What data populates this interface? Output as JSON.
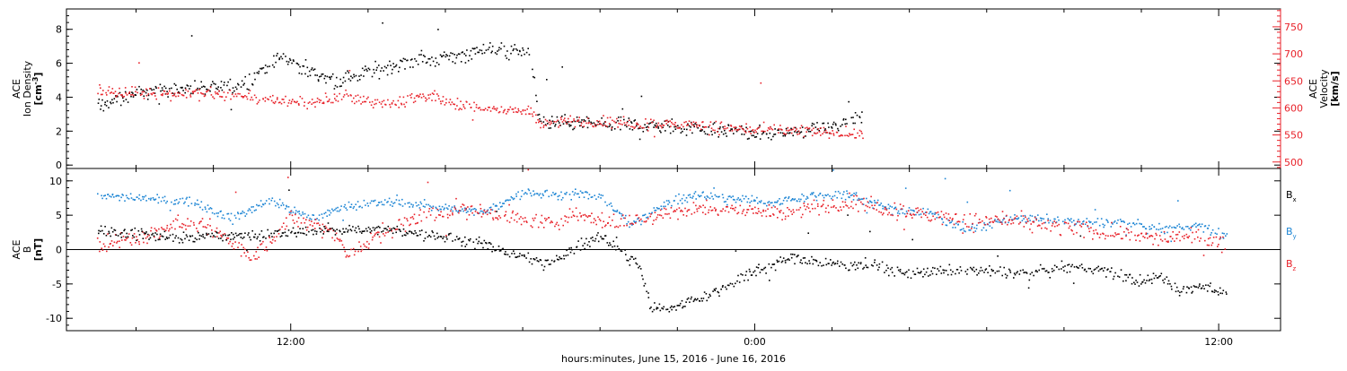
{
  "chart_data": [
    {
      "type": "scatter",
      "panel": "top",
      "left_axis": {
        "label_lines": [
          "ACE",
          "Ion Density"
        ],
        "unit_base": "[cm",
        "unit_sup": "-3",
        "unit_close": "]",
        "ylim": [
          -0.2,
          9.2
        ],
        "ticks": [
          0,
          2,
          4,
          6,
          8
        ],
        "color": "#000000"
      },
      "right_axis": {
        "label_lines": [
          "ACE",
          "Velocity",
          "[km/s]"
        ],
        "ylim": [
          488,
          783
        ],
        "ticks": [
          500,
          550,
          600,
          650,
          700,
          750
        ],
        "color": "#e8222a"
      },
      "series": [
        {
          "color": "#000000",
          "axis": "left",
          "anchors": [
            [
              7.0,
              3.5
            ],
            [
              8.0,
              4.3
            ],
            [
              9.5,
              4.6
            ],
            [
              10.5,
              4.6
            ],
            [
              11.2,
              5.5
            ],
            [
              11.8,
              6.5
            ],
            [
              12.5,
              5.5
            ],
            [
              13.2,
              5.0
            ],
            [
              14.0,
              5.5
            ],
            [
              15.0,
              6.2
            ],
            [
              16.0,
              6.3
            ],
            [
              17.0,
              6.9
            ],
            [
              18.2,
              6.7
            ],
            [
              18.4,
              2.6
            ],
            [
              20.0,
              2.4
            ],
            [
              22.0,
              2.3
            ],
            [
              24.0,
              1.9
            ],
            [
              25.0,
              2.0
            ],
            [
              26.0,
              2.4
            ],
            [
              26.8,
              2.8
            ]
          ],
          "spread": 0.65
        },
        {
          "color": "#e8222a",
          "axis": "right",
          "anchors": [
            [
              7.0,
              635
            ],
            [
              8.0,
              628
            ],
            [
              10.0,
              628
            ],
            [
              11.5,
              615
            ],
            [
              12.5,
              612
            ],
            [
              13.5,
              622
            ],
            [
              14.5,
              608
            ],
            [
              15.5,
              625
            ],
            [
              16.2,
              608
            ],
            [
              17.0,
              600
            ],
            [
              18.2,
              595
            ],
            [
              18.4,
              575
            ],
            [
              20.0,
              575
            ],
            [
              22.0,
              570
            ],
            [
              24.0,
              560
            ],
            [
              25.0,
              558
            ],
            [
              26.0,
              557
            ],
            [
              26.8,
              552
            ]
          ],
          "spread": 16
        }
      ]
    },
    {
      "type": "scatter",
      "panel": "bottom",
      "left_axis": {
        "label_lines": [
          "ACE",
          "B",
          "[nT]"
        ],
        "ylim": [
          -11.8,
          11.8
        ],
        "ticks": [
          -10,
          -5,
          0,
          5,
          10
        ],
        "color": "#000000"
      },
      "legend": [
        {
          "label": "B",
          "sub": "x",
          "color": "#000000"
        },
        {
          "label": "B",
          "sub": "y",
          "color": "#1e86d4"
        },
        {
          "label": "B",
          "sub": "z",
          "color": "#e8222a"
        }
      ],
      "series": [
        {
          "name": "Bx",
          "color": "#000000",
          "anchors": [
            [
              7.0,
              3.0
            ],
            [
              8.5,
              2.0
            ],
            [
              10.5,
              2.0
            ],
            [
              12.0,
              2.5
            ],
            [
              13.0,
              3.0
            ],
            [
              14.5,
              3.0
            ],
            [
              16.0,
              2.0
            ],
            [
              17.5,
              0.0
            ],
            [
              18.5,
              -2.0
            ],
            [
              20.0,
              2.0
            ],
            [
              21.0,
              -2.0
            ],
            [
              21.3,
              -8.5
            ],
            [
              22.0,
              -8.0
            ],
            [
              23.0,
              -6.0
            ],
            [
              24.0,
              -3.0
            ],
            [
              25.0,
              -1.0
            ],
            [
              26.0,
              -2.0
            ],
            [
              27.0,
              -2.0
            ],
            [
              28.0,
              -3.5
            ],
            [
              29.0,
              -3.0
            ],
            [
              30.0,
              -3.0
            ],
            [
              31.0,
              -3.5
            ],
            [
              32.0,
              -2.5
            ],
            [
              33.0,
              -3.0
            ],
            [
              34.0,
              -4.5
            ],
            [
              34.5,
              -4.0
            ],
            [
              35.0,
              -6.0
            ],
            [
              35.5,
              -5.0
            ],
            [
              36.2,
              -6.5
            ]
          ],
          "spread": 1.2
        },
        {
          "name": "By",
          "color": "#1e86d4",
          "anchors": [
            [
              7.0,
              8.0
            ],
            [
              8.0,
              7.5
            ],
            [
              9.5,
              7.0
            ],
            [
              10.5,
              4.5
            ],
            [
              11.5,
              7.5
            ],
            [
              12.5,
              4.5
            ],
            [
              13.5,
              6.5
            ],
            [
              14.5,
              7.0
            ],
            [
              15.5,
              6.5
            ],
            [
              17.0,
              5.5
            ],
            [
              18.0,
              8.5
            ],
            [
              19.0,
              8.0
            ],
            [
              20.0,
              8.0
            ],
            [
              20.8,
              3.5
            ],
            [
              21.5,
              6.5
            ],
            [
              22.5,
              8.0
            ],
            [
              23.5,
              7.5
            ],
            [
              24.5,
              7.0
            ],
            [
              25.5,
              8.0
            ],
            [
              26.5,
              8.0
            ],
            [
              27.5,
              6.0
            ],
            [
              28.5,
              5.5
            ],
            [
              29.5,
              3.0
            ],
            [
              30.5,
              4.5
            ],
            [
              31.5,
              4.5
            ],
            [
              32.5,
              4.0
            ],
            [
              33.5,
              4.0
            ],
            [
              34.5,
              3.0
            ],
            [
              35.5,
              3.5
            ],
            [
              36.2,
              2.0
            ]
          ],
          "spread": 1.0
        },
        {
          "name": "Bz",
          "color": "#e8222a",
          "anchors": [
            [
              7.0,
              1.0
            ],
            [
              8.0,
              1.5
            ],
            [
              9.0,
              4.0
            ],
            [
              10.0,
              3.0
            ],
            [
              11.0,
              -1.0
            ],
            [
              12.0,
              4.5
            ],
            [
              13.0,
              3.0
            ],
            [
              13.5,
              -0.5
            ],
            [
              14.5,
              3.0
            ],
            [
              15.5,
              5.0
            ],
            [
              16.5,
              6.0
            ],
            [
              17.5,
              5.0
            ],
            [
              18.5,
              4.0
            ],
            [
              19.5,
              5.0
            ],
            [
              20.5,
              4.0
            ],
            [
              21.5,
              5.0
            ],
            [
              22.5,
              6.0
            ],
            [
              23.5,
              6.0
            ],
            [
              24.5,
              5.5
            ],
            [
              25.5,
              6.0
            ],
            [
              26.5,
              7.0
            ],
            [
              27.5,
              6.0
            ],
            [
              28.5,
              5.0
            ],
            [
              29.5,
              4.0
            ],
            [
              30.5,
              4.5
            ],
            [
              31.5,
              3.5
            ],
            [
              32.5,
              3.0
            ],
            [
              33.5,
              2.5
            ],
            [
              34.5,
              1.5
            ],
            [
              35.5,
              2.0
            ],
            [
              36.2,
              0.5
            ]
          ],
          "spread": 1.8
        }
      ]
    }
  ],
  "x_axis": {
    "xlim": [
      6.2,
      37.6
    ],
    "data_end": 36.2,
    "top_panel_end": 26.8,
    "ticks": [
      {
        "x": 12,
        "label": "12:00"
      },
      {
        "x": 24,
        "label": "0:00"
      },
      {
        "x": 36,
        "label": "12:00"
      }
    ],
    "minor_step": 2,
    "xlabel": "hours:minutes, June 15, 2016 - June 16, 2016"
  }
}
